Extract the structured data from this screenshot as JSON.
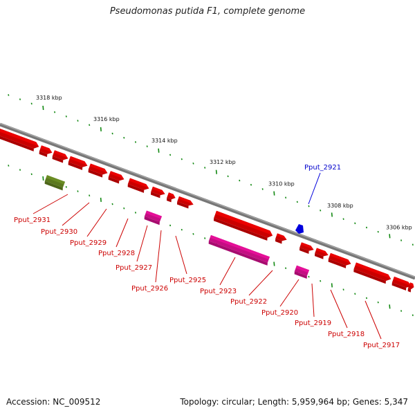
{
  "title": "Pseudomonas putida F1, complete genome",
  "footer": {
    "accession": "Accession: NC_009512",
    "info": "Topology: circular; Length: 5,959,964 bp; Genes: 5,347"
  },
  "colors": {
    "gene": "#ee0000",
    "rna": "#e8109a",
    "pseudo": "#6b8e23",
    "highlight": "#0000dd",
    "tick": "#118811",
    "backbone": "#777777"
  },
  "scale_labels": [
    "3318 kbp",
    "3316 kbp",
    "3314 kbp",
    "3312 kbp",
    "3310 kbp",
    "3308 kbp",
    "3306 kbp"
  ],
  "genes": [
    {
      "label": "Pput_2931",
      "type": "gene"
    },
    {
      "label": "Pput_2930",
      "type": "gene"
    },
    {
      "label": "Pput_2929",
      "type": "gene"
    },
    {
      "label": "Pput_2928",
      "type": "gene"
    },
    {
      "label": "Pput_2927",
      "type": "rna"
    },
    {
      "label": "Pput_2926",
      "type": "gene"
    },
    {
      "label": "Pput_2925",
      "type": "gene"
    },
    {
      "label": "Pput_2923",
      "type": "rna"
    },
    {
      "label": "Pput_2922",
      "type": "gene"
    },
    {
      "label": "Pput_2921",
      "type": "highlight"
    },
    {
      "label": "Pput_2920",
      "type": "rna"
    },
    {
      "label": "Pput_2919",
      "type": "gene"
    },
    {
      "label": "Pput_2918",
      "type": "gene"
    },
    {
      "label": "Pput_2917",
      "type": "gene"
    }
  ]
}
